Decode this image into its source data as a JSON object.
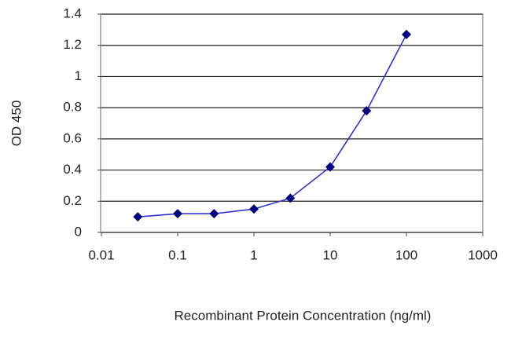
{
  "chart_data": {
    "type": "line",
    "x_label": "Recombinant Protein Concentration (ng/ml)",
    "y_label": "OD 450",
    "x": [
      0.03,
      0.1,
      0.3,
      1,
      3,
      10,
      30,
      100
    ],
    "series": [
      {
        "name": "OD 450",
        "color": "#3333cc",
        "marker_color": "#000080",
        "values": [
          0.1,
          0.12,
          0.12,
          0.15,
          0.22,
          0.42,
          0.78,
          1.27
        ]
      }
    ],
    "xscale": "log",
    "xlim": [
      0.01,
      1000
    ],
    "xticks": [
      0.01,
      0.1,
      1,
      10,
      100,
      1000
    ],
    "ylim": [
      0,
      1.4
    ],
    "yticks": [
      0,
      0.2,
      0.4,
      0.6,
      0.8,
      1,
      1.2,
      1.4
    ],
    "grid": true
  }
}
